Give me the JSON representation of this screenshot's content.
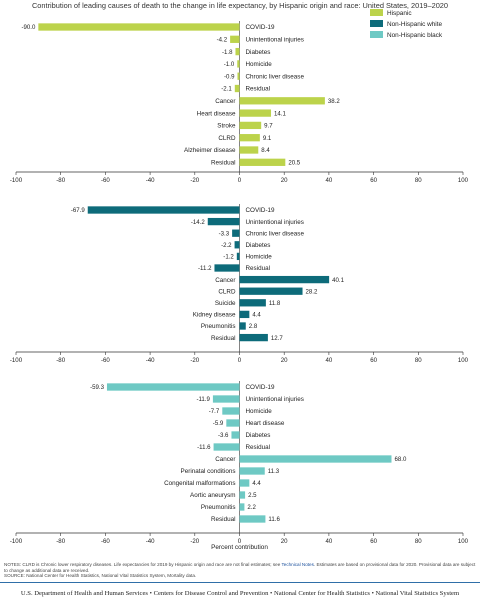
{
  "title": "Contribution of leading causes of death to the change in life expectancy, by Hispanic origin and race: United States, 2019–2020",
  "legend": [
    {
      "label": "Hispanic",
      "color": "#bcd34b"
    },
    {
      "label": "Non-Hispanic white",
      "color": "#0d6b7a"
    },
    {
      "label": "Non-Hispanic black",
      "color": "#6ec9c4"
    }
  ],
  "x_ticks": [
    "-100",
    "-80",
    "-60",
    "-40",
    "-20",
    "0",
    "20",
    "40",
    "60",
    "80",
    "100"
  ],
  "xlabel": "Percent contribution",
  "chart_data": [
    {
      "type": "bar",
      "series": [
        {
          "name": "Hispanic",
          "color": "#bcd34b"
        }
      ],
      "categories": [
        "COVID-19",
        "Unintentional injuries",
        "Diabetes",
        "Homicide",
        "Chronic liver disease",
        "Residual",
        "Cancer",
        "Heart disease",
        "Stroke",
        "CLRD",
        "Alzheimer disease",
        "Residual"
      ],
      "values": [
        -90.0,
        -4.2,
        -1.8,
        -1.0,
        -0.9,
        -2.1,
        38.2,
        14.1,
        9.7,
        9.1,
        8.4,
        20.5
      ],
      "labels": [
        "-90.0",
        "-4.2",
        "-1.8",
        "-1.0",
        "-0.9",
        "-2.1",
        "38.2",
        "14.1",
        "9.7",
        "9.1",
        "8.4",
        "20.5"
      ],
      "xlim": [
        -100,
        100
      ]
    },
    {
      "type": "bar",
      "series": [
        {
          "name": "Non-Hispanic white",
          "color": "#0d6b7a"
        }
      ],
      "categories": [
        "COVID-19",
        "Unintentional injuries",
        "Chronic liver disease",
        "Diabetes",
        "Homicide",
        "Residual",
        "Cancer",
        "CLRD",
        "Suicide",
        "Kidney disease",
        "Pneumonitis",
        "Residual"
      ],
      "values": [
        -67.9,
        -14.2,
        -3.3,
        -2.2,
        -1.2,
        -11.2,
        40.1,
        28.2,
        11.8,
        4.4,
        2.8,
        12.7
      ],
      "labels": [
        "-67.9",
        "-14.2",
        "-3.3",
        "-2.2",
        "-1.2",
        "-11.2",
        "40.1",
        "28.2",
        "11.8",
        "4.4",
        "2.8",
        "12.7"
      ],
      "xlim": [
        -100,
        100
      ]
    },
    {
      "type": "bar",
      "series": [
        {
          "name": "Non-Hispanic black",
          "color": "#6ec9c4"
        }
      ],
      "categories": [
        "COVID-19",
        "Unintentional injuries",
        "Homicide",
        "Heart disease",
        "Diabetes",
        "Residual",
        "Cancer",
        "Perinatal conditions",
        "Congenital malformations",
        "Aortic aneurysm",
        "Pneumonitis",
        "Residual"
      ],
      "values": [
        -59.3,
        -11.9,
        -7.7,
        -5.9,
        -3.6,
        -11.6,
        68.0,
        11.3,
        4.4,
        2.5,
        2.2,
        11.6
      ],
      "labels": [
        "-59.3",
        "-11.9",
        "-7.7",
        "-5.9",
        "-3.6",
        "-11.6",
        "68.0",
        "11.3",
        "4.4",
        "2.5",
        "2.2",
        "11.6"
      ],
      "xlim": [
        -100,
        100
      ]
    }
  ],
  "notes": {
    "line1_pre": "NOTES: CLRD is Chronic lower respiratory diseases. Life expectancies for 2019 by Hispanic origin and race are not final estimates; see ",
    "line1_link": "Technical Notes",
    "line1_post": ". Estimates are based on provisional data for 2020. Provisional data are subject to change as additional data are received.",
    "source": "SOURCE: National Center for Health Statistics, National Vital Statistics System, Mortality data."
  },
  "footer": "U.S. Department of Health and Human Services • Centers for Disease Control and Prevention • National Center for Health Statistics • National Vital Statistics System"
}
